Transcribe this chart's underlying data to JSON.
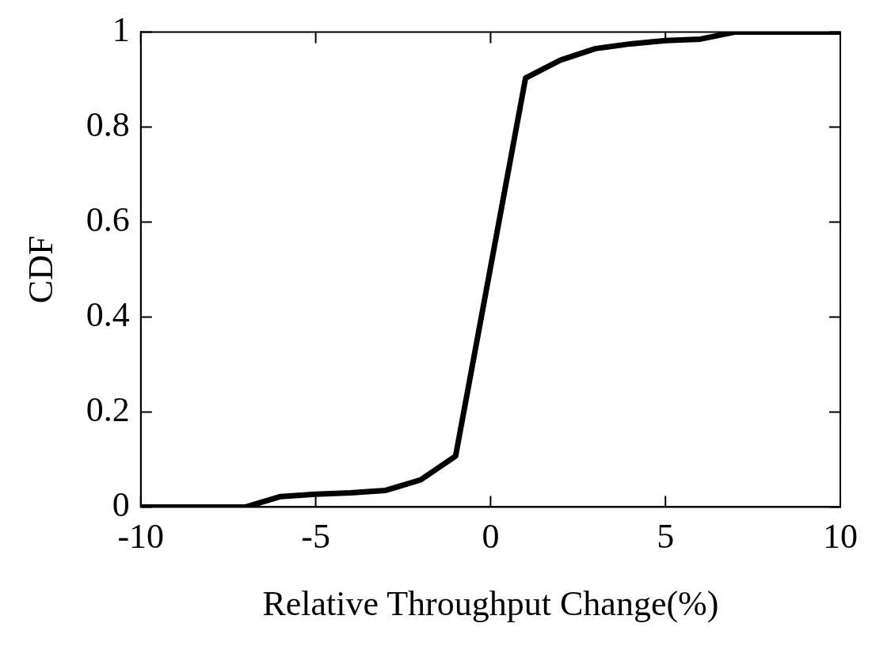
{
  "chart_data": {
    "type": "line",
    "xlabel": "Relative Throughput Change(%)",
    "ylabel": "CDF",
    "series": [
      {
        "color": "#000000",
        "x": [
          -10,
          -7,
          -6,
          -5,
          -4,
          -3,
          -2,
          -1,
          1,
          2,
          3,
          4,
          5,
          6,
          7,
          10
        ],
        "values": [
          0,
          0,
          0.022,
          0.027,
          0.03,
          0.035,
          0.057,
          0.107,
          0.903,
          0.941,
          0.965,
          0.975,
          0.982,
          0.985,
          1,
          1
        ]
      }
    ],
    "xlim": [
      -10,
      10
    ],
    "xticks": [
      -10,
      -5,
      0,
      5,
      10
    ],
    "ylim": [
      0,
      1
    ],
    "yticks": [
      0,
      0.2,
      0.4,
      0.6,
      0.8,
      1
    ],
    "grid": false,
    "legend": false,
    "marker": "none",
    "line_style": "solid"
  }
}
